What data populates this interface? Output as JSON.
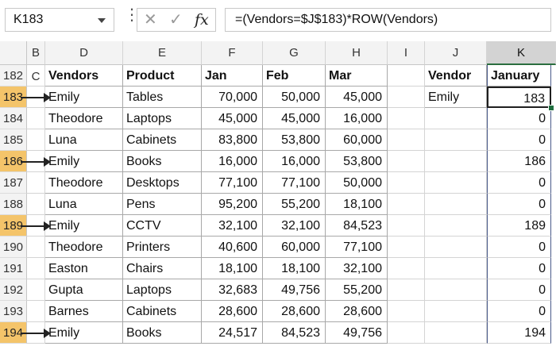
{
  "name_box": "K183",
  "formula_bar": {
    "more_icon": "⋮",
    "cancel_icon": "✕",
    "enter_icon": "✓",
    "fx_label": "fx",
    "formula": "=(Vendors=$J$183)*ROW(Vendors)"
  },
  "columns": [
    "B",
    "C",
    "D",
    "E",
    "F",
    "G",
    "H",
    "I",
    "J",
    "K"
  ],
  "column_labels": {
    "BC": "B C",
    "D": "D",
    "E": "E",
    "F": "F",
    "G": "G",
    "H": "H",
    "I": "I",
    "J": "J",
    "K": "K"
  },
  "rows": [
    "182",
    "183",
    "184",
    "185",
    "186",
    "187",
    "188",
    "189",
    "190",
    "191",
    "192",
    "193",
    "194"
  ],
  "highlighted_rows": [
    "183",
    "186",
    "189",
    "194"
  ],
  "table": {
    "headers": [
      "Vendors",
      "Product",
      "Jan",
      "Feb",
      "Mar"
    ],
    "data": [
      [
        "Emily",
        "Tables",
        "70,000",
        "50,000",
        "45,000"
      ],
      [
        "Theodore",
        "Laptops",
        "45,000",
        "45,000",
        "16,000"
      ],
      [
        "Luna",
        "Cabinets",
        "83,800",
        "53,800",
        "60,000"
      ],
      [
        "Emily",
        "Books",
        "16,000",
        "16,000",
        "53,800"
      ],
      [
        "Theodore",
        "Desktops",
        "77,100",
        "77,100",
        "50,000"
      ],
      [
        "Luna",
        "Pens",
        "95,200",
        "55,200",
        "18,100"
      ],
      [
        "Emily",
        "CCTV",
        "32,100",
        "32,100",
        "84,523"
      ],
      [
        "Theodore",
        "Printers",
        "40,600",
        "60,000",
        "77,100"
      ],
      [
        "Easton",
        "Chairs",
        "18,100",
        "18,100",
        "32,100"
      ],
      [
        "Gupta",
        "Laptops",
        "32,683",
        "49,756",
        "55,200"
      ],
      [
        "Barnes",
        "Cabinets",
        "28,600",
        "28,600",
        "28,600"
      ],
      [
        "Emily",
        "Books",
        "24,517",
        "84,523",
        "49,756"
      ]
    ]
  },
  "lookup": {
    "header": "Vendor",
    "value": "Emily"
  },
  "results": {
    "header": "January",
    "values": [
      "183",
      "0",
      "0",
      "186",
      "0",
      "0",
      "189",
      "0",
      "0",
      "0",
      "0",
      "194"
    ]
  },
  "colors": {
    "row_highlight": "#f4c46a",
    "selected_header": "#d3d3d3",
    "accent": "#1f6e3f"
  }
}
